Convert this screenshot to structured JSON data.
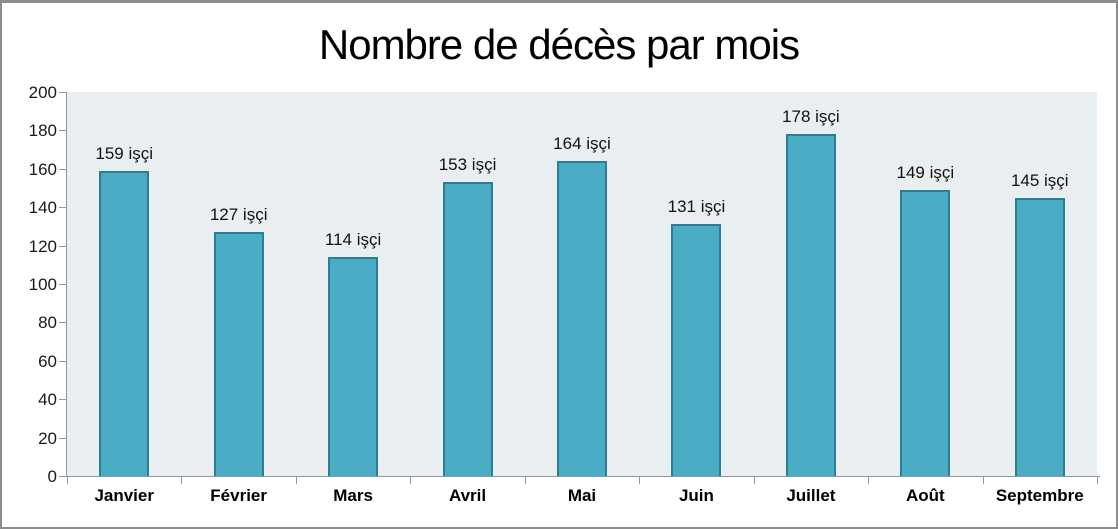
{
  "title": "Nombre de décès par mois",
  "chart_data": {
    "type": "bar",
    "title": "Nombre de décès par mois",
    "categories": [
      "Janvier",
      "Février",
      "Mars",
      "Avril",
      "Mai",
      "Juin",
      "Juillet",
      "Août",
      "Septembre"
    ],
    "values": [
      159,
      127,
      114,
      153,
      164,
      131,
      178,
      149,
      145
    ],
    "data_labels": [
      "159 işçi",
      "127 işçi",
      "114 işçi",
      "153 işçi",
      "164 işçi",
      "131 işçi",
      "178 işçi",
      "149 işçi",
      "145 işçi"
    ],
    "label_unit": "işçi",
    "xlabel": "",
    "ylabel": "",
    "ylim": [
      0,
      200
    ],
    "yticks": [
      0,
      20,
      40,
      60,
      80,
      100,
      120,
      140,
      160,
      180,
      200
    ],
    "grid": false,
    "legend": "none",
    "colors": {
      "bar_fill": "#4bacc6",
      "bar_border": "#2f7d93",
      "plot_background": "#e9eff1",
      "chart_background": "#ffffff",
      "axis_line": "#8e99a1",
      "outer_border": "#8c8c8c",
      "title_color": "#000000",
      "text_color": "#1a1a1a"
    }
  }
}
